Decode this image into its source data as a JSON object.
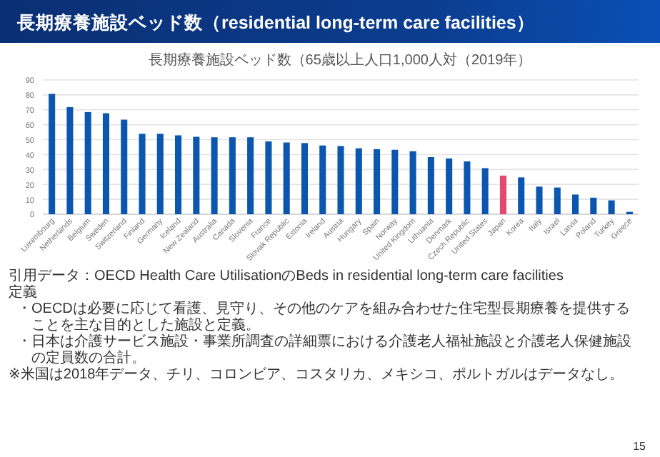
{
  "chart_data": {
    "type": "bar",
    "title": "長期療養施設ベッド数（residential long-term care facilities）",
    "subtitle": "長期療養施設ベッド数（65歳以上人口1,000人対（2019年）",
    "categories": [
      "Luxembourg",
      "Netherlands",
      "Belgium",
      "Sweden",
      "Switzerland",
      "Finland",
      "Germany",
      "Iceland",
      "New Zealand",
      "Australia",
      "Canada",
      "Slovenia",
      "France",
      "Slovak Republic",
      "Estonia",
      "Ireland",
      "Austria",
      "Hungary",
      "Spain",
      "Norway",
      "United Kingdom",
      "Lithuania",
      "Denmark",
      "Czech Republic",
      "United States",
      "Japan",
      "Korea",
      "Italy",
      "Israel",
      "Latvia",
      "Poland",
      "Turkey",
      "Greece"
    ],
    "values": [
      80.7,
      71.8,
      68.5,
      67.7,
      63.4,
      53.9,
      53.9,
      52.9,
      51.9,
      51.6,
      51.6,
      51.6,
      48.8,
      48.1,
      47.7,
      46.1,
      45.7,
      44.2,
      43.6,
      43.2,
      42.2,
      38.3,
      37.4,
      35.4,
      30.9,
      25.9,
      24.7,
      18.5,
      17.9,
      13.2,
      11.1,
      9.3,
      1.6
    ],
    "colors": [
      "#0b57b0",
      "#0b57b0",
      "#0b57b0",
      "#0b57b0",
      "#0b57b0",
      "#0b57b0",
      "#0b57b0",
      "#0b57b0",
      "#0b57b0",
      "#0b57b0",
      "#0b57b0",
      "#0b57b0",
      "#0b57b0",
      "#0b57b0",
      "#0b57b0",
      "#0b57b0",
      "#0b57b0",
      "#0b57b0",
      "#0b57b0",
      "#0b57b0",
      "#0b57b0",
      "#0b57b0",
      "#0b57b0",
      "#0b57b0",
      "#0b57b0",
      "#e04a6c",
      "#0b57b0",
      "#0b57b0",
      "#0b57b0",
      "#0b57b0",
      "#0b57b0",
      "#0b57b0",
      "#0b57b0"
    ],
    "ylim": [
      0,
      90
    ],
    "yticks": [
      0,
      10,
      20,
      30,
      40,
      50,
      60,
      70,
      80,
      90
    ],
    "grid": "y",
    "annotations": [
      "引用データ：OECD Health Care UtilisationのBeds in residential long-term care facilities",
      "定義",
      "・OECDは必要に応じて看護、見守り、その他のケアを組み合わせた住宅型長期療養を提供することを主な目的とした施設と定義。",
      "・日本は介護サービス施設・事業所調査の詳細票における介護老人福祉施設と介護老人保健施設の定員数の合計。",
      "※米国は2018年データ、チリ、コロンビア、コスタリカ、メキシコ、ポルトガルはデータなし。",
      "15"
    ]
  }
}
